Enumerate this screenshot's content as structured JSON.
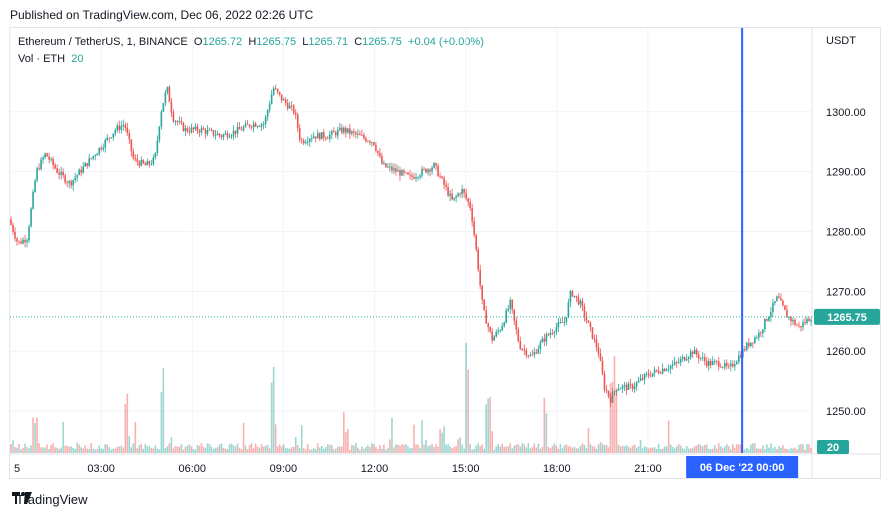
{
  "header": {
    "published": "Published on TradingView.com, Dec 06, 2022 02:26 UTC"
  },
  "legend": {
    "symbol": "Ethereum / TetherUS, 1, BINANCE",
    "open_label": "O",
    "open": "1265.72",
    "high_label": "H",
    "high": "1265.75",
    "low_label": "L",
    "low": "1265.71",
    "close_label": "C",
    "close": "1265.75",
    "change": "+0.04 (+0.00%)",
    "volume_label": "Vol · ETH",
    "volume": "20"
  },
  "colors": {
    "up": "#26a69a",
    "down": "#ef5350",
    "crosshair": "#2962ff",
    "price_tag": "#26a69a"
  },
  "footer": {
    "brand": "TradingView",
    "logo_icon": "tradingview-logo-icon"
  },
  "chart_data": {
    "type": "candlestick",
    "title": "Ethereum / TetherUS, 1, BINANCE",
    "currency": "USDT",
    "ylim": [
      1243,
      1314
    ],
    "y_ticks": [
      "1250.00",
      "1260.00",
      "1270.00",
      "1280.00",
      "1290.00",
      "1300.00"
    ],
    "x_ticks": [
      "5",
      "03:00",
      "06:00",
      "09:00",
      "12:00",
      "15:00",
      "18:00",
      "21:00"
    ],
    "last_price_label": "1265.75",
    "last_price": 1265.75,
    "volume_label_value": "20",
    "crosshair_label": "06 Dec '22   00:00",
    "crosshair_hour": 24.1,
    "x_start_hour": 0,
    "x_end_hour": 26.4,
    "price_path": [
      [
        0.0,
        1282
      ],
      [
        0.3,
        1278
      ],
      [
        0.6,
        1279
      ],
      [
        0.9,
        1290
      ],
      [
        1.2,
        1293
      ],
      [
        1.6,
        1290
      ],
      [
        2.0,
        1288
      ],
      [
        2.5,
        1291
      ],
      [
        3.0,
        1294
      ],
      [
        3.5,
        1297
      ],
      [
        3.8,
        1298
      ],
      [
        4.1,
        1292
      ],
      [
        4.5,
        1291
      ],
      [
        4.8,
        1292
      ],
      [
        5.0,
        1300
      ],
      [
        5.2,
        1304
      ],
      [
        5.4,
        1299
      ],
      [
        5.8,
        1297
      ],
      [
        6.3,
        1297
      ],
      [
        7.0,
        1296
      ],
      [
        7.6,
        1297
      ],
      [
        8.0,
        1298
      ],
      [
        8.4,
        1298
      ],
      [
        8.7,
        1304
      ],
      [
        9.0,
        1302
      ],
      [
        9.4,
        1300
      ],
      [
        9.6,
        1295
      ],
      [
        10.0,
        1296
      ],
      [
        10.5,
        1296
      ],
      [
        11.0,
        1297
      ],
      [
        11.5,
        1296
      ],
      [
        12.0,
        1295
      ],
      [
        12.3,
        1291
      ],
      [
        12.8,
        1290
      ],
      [
        13.2,
        1289
      ],
      [
        13.6,
        1290
      ],
      [
        14.0,
        1291
      ],
      [
        14.3,
        1288
      ],
      [
        14.6,
        1285
      ],
      [
        14.9,
        1287
      ],
      [
        15.2,
        1284
      ],
      [
        15.4,
        1276
      ],
      [
        15.6,
        1267
      ],
      [
        15.9,
        1262
      ],
      [
        16.2,
        1264
      ],
      [
        16.5,
        1268
      ],
      [
        16.8,
        1261
      ],
      [
        17.2,
        1259
      ],
      [
        17.6,
        1262
      ],
      [
        18.0,
        1264
      ],
      [
        18.3,
        1265
      ],
      [
        18.5,
        1270
      ],
      [
        18.8,
        1268
      ],
      [
        19.1,
        1264
      ],
      [
        19.4,
        1260
      ],
      [
        19.6,
        1254
      ],
      [
        19.8,
        1252
      ],
      [
        20.0,
        1254
      ],
      [
        20.5,
        1254
      ],
      [
        21.0,
        1256
      ],
      [
        21.5,
        1257
      ],
      [
        22.0,
        1258
      ],
      [
        22.5,
        1260
      ],
      [
        23.0,
        1258
      ],
      [
        23.4,
        1258
      ],
      [
        23.7,
        1257
      ],
      [
        24.0,
        1259
      ],
      [
        24.3,
        1261
      ],
      [
        24.7,
        1263
      ],
      [
        25.0,
        1266
      ],
      [
        25.3,
        1269
      ],
      [
        25.6,
        1266
      ],
      [
        26.0,
        1264
      ],
      [
        26.4,
        1265.75
      ]
    ],
    "volume_spikes": [
      [
        0.8,
        0.35
      ],
      [
        3.8,
        0.5
      ],
      [
        5.0,
        0.9
      ],
      [
        8.6,
        0.8
      ],
      [
        11.0,
        0.3
      ],
      [
        15.0,
        1.0
      ],
      [
        15.7,
        0.6
      ],
      [
        17.6,
        0.4
      ],
      [
        19.8,
        0.9
      ],
      [
        19.9,
        0.6
      ],
      [
        14.2,
        0.25
      ],
      [
        12.5,
        0.2
      ]
    ]
  }
}
